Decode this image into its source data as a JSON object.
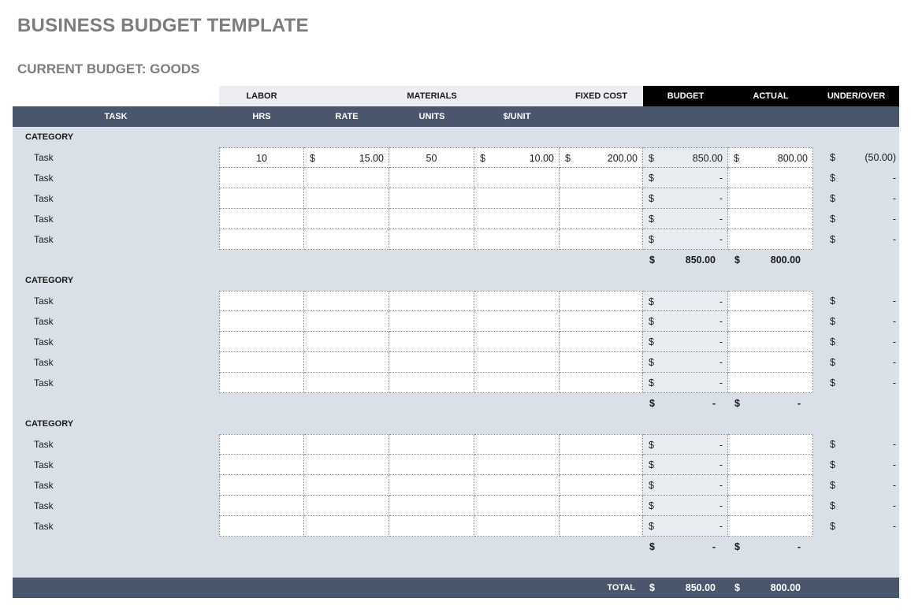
{
  "title": "BUSINESS BUDGET TEMPLATE",
  "subtitle": "CURRENT BUDGET: GOODS",
  "header_top": {
    "labor": "LABOR",
    "materials": "MATERIALS",
    "fixed_cost": "FIXED COST",
    "budget": "BUDGET",
    "actual": "ACTUAL",
    "under_over": "UNDER/OVER"
  },
  "header_sub": {
    "task": "TASK",
    "hrs": "HRS",
    "rate": "RATE",
    "units": "UNITS",
    "per_unit": "$/UNIT"
  },
  "currency": "$",
  "sections": [
    {
      "category": "CATEGORY",
      "rows": [
        {
          "task": "Task",
          "hrs": "10",
          "rate": "15.00",
          "units": "50",
          "per_unit": "10.00",
          "fixed": "200.00",
          "budget": "850.00",
          "actual": "800.00",
          "under_over": "(50.00)"
        },
        {
          "task": "Task",
          "hrs": "",
          "rate": "",
          "units": "",
          "per_unit": "",
          "fixed": "",
          "budget": "-",
          "actual": "",
          "under_over": "-"
        },
        {
          "task": "Task",
          "hrs": "",
          "rate": "",
          "units": "",
          "per_unit": "",
          "fixed": "",
          "budget": "-",
          "actual": "",
          "under_over": "-"
        },
        {
          "task": "Task",
          "hrs": "",
          "rate": "",
          "units": "",
          "per_unit": "",
          "fixed": "",
          "budget": "-",
          "actual": "",
          "under_over": "-"
        },
        {
          "task": "Task",
          "hrs": "",
          "rate": "",
          "units": "",
          "per_unit": "",
          "fixed": "",
          "budget": "-",
          "actual": "",
          "under_over": "-"
        }
      ],
      "subtotal": {
        "budget": "850.00",
        "actual": "800.00"
      }
    },
    {
      "category": "CATEGORY",
      "rows": [
        {
          "task": "Task",
          "hrs": "",
          "rate": "",
          "units": "",
          "per_unit": "",
          "fixed": "",
          "budget": "-",
          "actual": "",
          "under_over": "-"
        },
        {
          "task": "Task",
          "hrs": "",
          "rate": "",
          "units": "",
          "per_unit": "",
          "fixed": "",
          "budget": "-",
          "actual": "",
          "under_over": "-"
        },
        {
          "task": "Task",
          "hrs": "",
          "rate": "",
          "units": "",
          "per_unit": "",
          "fixed": "",
          "budget": "-",
          "actual": "",
          "under_over": "-"
        },
        {
          "task": "Task",
          "hrs": "",
          "rate": "",
          "units": "",
          "per_unit": "",
          "fixed": "",
          "budget": "-",
          "actual": "",
          "under_over": "-"
        },
        {
          "task": "Task",
          "hrs": "",
          "rate": "",
          "units": "",
          "per_unit": "",
          "fixed": "",
          "budget": "-",
          "actual": "",
          "under_over": "-"
        }
      ],
      "subtotal": {
        "budget": "-",
        "actual": "-"
      }
    },
    {
      "category": "CATEGORY",
      "rows": [
        {
          "task": "Task",
          "hrs": "",
          "rate": "",
          "units": "",
          "per_unit": "",
          "fixed": "",
          "budget": "-",
          "actual": "",
          "under_over": "-"
        },
        {
          "task": "Task",
          "hrs": "",
          "rate": "",
          "units": "",
          "per_unit": "",
          "fixed": "",
          "budget": "-",
          "actual": "",
          "under_over": "-"
        },
        {
          "task": "Task",
          "hrs": "",
          "rate": "",
          "units": "",
          "per_unit": "",
          "fixed": "",
          "budget": "-",
          "actual": "",
          "under_over": "-"
        },
        {
          "task": "Task",
          "hrs": "",
          "rate": "",
          "units": "",
          "per_unit": "",
          "fixed": "",
          "budget": "-",
          "actual": "",
          "under_over": "-"
        },
        {
          "task": "Task",
          "hrs": "",
          "rate": "",
          "units": "",
          "per_unit": "",
          "fixed": "",
          "budget": "-",
          "actual": "",
          "under_over": "-"
        }
      ],
      "subtotal": {
        "budget": "-",
        "actual": "-"
      }
    }
  ],
  "total": {
    "label": "TOTAL",
    "budget": "850.00",
    "actual": "800.00"
  }
}
